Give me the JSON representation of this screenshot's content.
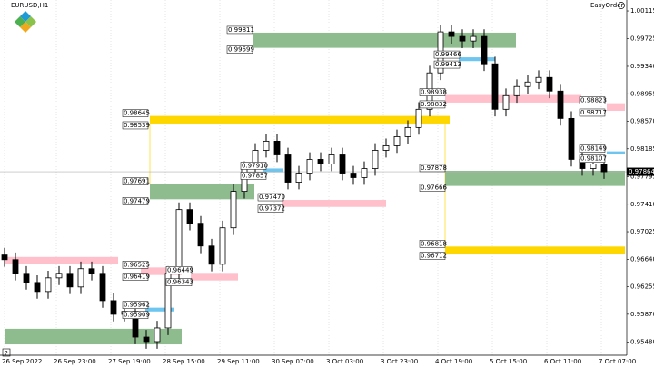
{
  "chart_data": {
    "type": "candlestick",
    "title": "EURUSD,H1",
    "toolbar_label": "EasyOrder",
    "help_label": "?",
    "x_labels": [
      "26 Sep 2022",
      "26 Sep 23:00",
      "27 Sep 19:00",
      "28 Sep 15:00",
      "29 Sep 11:00",
      "30 Sep 07:00",
      "3 Oct 03:00",
      "3 Oct 23:00",
      "4 Oct 19:00",
      "5 Oct 15:00",
      "6 Oct 11:00",
      "7 Oct 07:00"
    ],
    "ylim": [
      0.95296,
      1.00268
    ],
    "yticks": [
      1.00115,
      0.99725,
      {
        "value": 0.9934,
        "label": "0.99340"
      },
      0.98955,
      {
        "value": 0.9857,
        "label": "0.98570"
      },
      0.98185,
      0.97795,
      {
        "value": 0.9741,
        "label": "0.97410"
      },
      0.97025,
      {
        "value": 0.9664,
        "label": "0.96640"
      },
      0.96255,
      {
        "value": 0.9587,
        "label": "0.95870"
      },
      {
        "value": 0.9548,
        "label": "0.95480"
      }
    ],
    "open": [
      0.967,
      0.96634,
      0.96443,
      0.96315,
      0.96188,
      0.96379,
      0.96443,
      0.96252,
      0.96507,
      0.96443,
      0.9606,
      0.95869,
      0.9591,
      0.9555,
      0.95487,
      0.95678,
      0.96443,
      0.97335,
      0.97144,
      0.96825,
      0.9657,
      0.9708,
      0.9759,
      0.97909,
      0.98164,
      0.98292,
      0.981,
      0.97718,
      0.97845,
      0.98037,
      0.97973,
      0.981,
      0.97845,
      0.97782,
      0.97909,
      0.98164,
      0.98228,
      0.98355,
      0.98483,
      0.98738,
      0.99248,
      0.99822,
      0.99758,
      0.99694,
      0.99758,
      0.99375,
      0.98738,
      0.98929,
      0.99057,
      0.9912,
      0.99184,
      0.98993,
      0.9861,
      0.98037,
      0.97909,
      0.97973
    ],
    "high": [
      0.968,
      0.96734,
      0.96543,
      0.96415,
      0.96479,
      0.96543,
      0.96543,
      0.96607,
      0.96607,
      0.96543,
      0.9616,
      0.9601,
      0.9601,
      0.9565,
      0.95778,
      0.96543,
      0.97435,
      0.97435,
      0.97244,
      0.96925,
      0.9718,
      0.9769,
      0.98009,
      0.98264,
      0.98392,
      0.98392,
      0.982,
      0.97945,
      0.98137,
      0.98137,
      0.982,
      0.982,
      0.97945,
      0.98009,
      0.98264,
      0.98328,
      0.98455,
      0.98583,
      0.98838,
      0.99348,
      0.99922,
      0.99922,
      0.99858,
      0.99858,
      0.99858,
      0.99475,
      0.99029,
      0.99157,
      0.9922,
      0.99284,
      0.99284,
      0.99093,
      0.9871,
      0.98137,
      0.98073,
      0.98073
    ],
    "low": [
      0.96534,
      0.96343,
      0.96215,
      0.96088,
      0.96088,
      0.96279,
      0.96152,
      0.96152,
      0.96343,
      0.9596,
      0.95769,
      0.95769,
      0.9545,
      0.95387,
      0.95387,
      0.95578,
      0.96343,
      0.97044,
      0.96725,
      0.9647,
      0.9647,
      0.9698,
      0.9749,
      0.97809,
      0.98064,
      0.98,
      0.97618,
      0.97618,
      0.97745,
      0.97873,
      0.97873,
      0.97745,
      0.97682,
      0.97682,
      0.97809,
      0.98064,
      0.98128,
      0.98255,
      0.98383,
      0.98638,
      0.99148,
      0.99658,
      0.99594,
      0.99594,
      0.99275,
      0.98638,
      0.98638,
      0.98829,
      0.98957,
      0.9902,
      0.98893,
      0.9851,
      0.97937,
      0.97809,
      0.97809,
      0.97764
    ],
    "close": [
      0.96634,
      0.96443,
      0.96315,
      0.96188,
      0.96379,
      0.96443,
      0.96252,
      0.96507,
      0.96443,
      0.9606,
      0.95869,
      0.9591,
      0.9555,
      0.95487,
      0.95678,
      0.96443,
      0.97335,
      0.97144,
      0.96825,
      0.9657,
      0.9708,
      0.9759,
      0.97909,
      0.98164,
      0.98292,
      0.981,
      0.97718,
      0.97845,
      0.98037,
      0.97973,
      0.981,
      0.97845,
      0.97782,
      0.97909,
      0.98164,
      0.98228,
      0.98355,
      0.98483,
      0.98738,
      0.99248,
      0.99822,
      0.99758,
      0.99694,
      0.99758,
      0.99375,
      0.98738,
      0.98929,
      0.99057,
      0.9912,
      0.99184,
      0.98993,
      0.9861,
      0.98037,
      0.97909,
      0.97973,
      0.97864
    ],
    "current_price": 0.97864,
    "zones": [
      {
        "color": "#8fbc8f",
        "high": 0.99811,
        "low": 0.99599
      },
      {
        "color": "#ffd700",
        "high": 0.98645,
        "low": 0.98539
      },
      {
        "color": "#8fbc8f",
        "high": 0.97691,
        "low": 0.97479
      },
      {
        "color": "#ffc0cb",
        "high": {
          "value": 0.9747,
          "label": "0.97470"
        },
        "low": 0.97372
      },
      {
        "color": "#ffc0cb",
        "high": 0.96525,
        "low": 0.96419
      },
      {
        "color": "#ffc0cb",
        "high": 0.96449,
        "low": 0.96343
      },
      {
        "color": "#6ec6f0",
        "high": 0.95962,
        "low": 0.95909
      },
      {
        "color": "#6ec6f0",
        "high": {
          "value": 0.9791,
          "label": "0.97910"
        },
        "low": 0.97857
      },
      {
        "color": "#6ec6f0",
        "high": 0.99466,
        "low": 0.99413
      },
      {
        "color": "#ffc0cb",
        "high": 0.98938,
        "low": 0.98832
      },
      {
        "color": "#ffc0cb",
        "high": 0.98823,
        "low": 0.98717
      },
      {
        "color": "#6ec6f0",
        "high": 0.98149,
        "low": 0.98107
      },
      {
        "color": "#8fbc8f",
        "high": 0.97878,
        "low": 0.97666
      },
      {
        "color": "#ffd700",
        "high": 0.96818,
        "low": 0.96712
      }
    ],
    "unlabeled_zones": [
      {
        "color": "#ffc0cb",
        "high": 0.96672,
        "low": 0.96571
      },
      {
        "color": "#8fbc8f",
        "high": 0.95666,
        "low": 0.95448
      }
    ]
  }
}
